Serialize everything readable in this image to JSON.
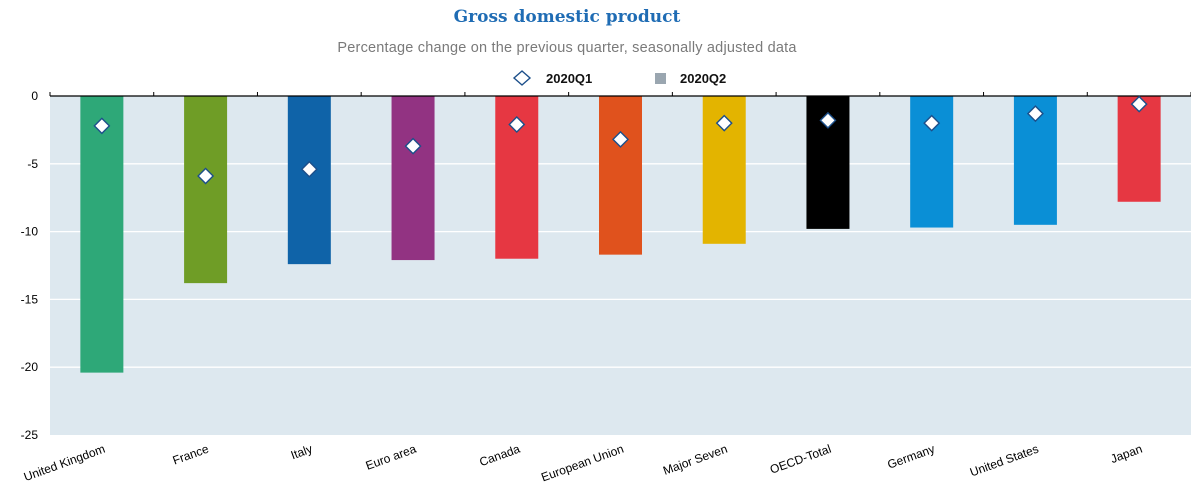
{
  "chart_data": {
    "type": "bar",
    "title": "Gross domestic product",
    "subtitle": "Percentage change on the previous quarter, seasonally adjusted data",
    "legend": {
      "placement": "top-center",
      "entries": [
        {
          "label": "2020Q1",
          "marker": "diamond"
        },
        {
          "label": "2020Q2",
          "marker": "square"
        }
      ]
    },
    "categories": [
      "United Kingdom",
      "France",
      "Italy",
      "Euro area",
      "Canada",
      "European Union",
      "Major Seven",
      "OECD-Total",
      "Germany",
      "United States",
      "Japan"
    ],
    "series": [
      {
        "name": "2020Q2",
        "kind": "bar",
        "values": [
          -20.4,
          -13.8,
          -12.4,
          -12.1,
          -12.0,
          -11.7,
          -10.9,
          -9.8,
          -9.7,
          -9.5,
          -7.8
        ]
      },
      {
        "name": "2020Q1",
        "kind": "marker",
        "values": [
          -2.2,
          -5.9,
          -5.4,
          -3.7,
          -2.1,
          -3.2,
          -2.0,
          -1.8,
          -2.0,
          -1.3,
          -0.6
        ]
      }
    ],
    "bar_colors": [
      "#2ea878",
      "#6f9d26",
      "#0f63a8",
      "#923382",
      "#e63742",
      "#e0521d",
      "#e3b400",
      "#000000",
      "#0a8fd6",
      "#0a8fd6",
      "#e63742"
    ],
    "background_color": "#dde8ef",
    "ylim": [
      -25,
      0
    ],
    "yticks": [
      0,
      -5,
      -10,
      -15,
      -20,
      -25
    ],
    "xlabel": "",
    "ylabel": "",
    "grid": true
  }
}
